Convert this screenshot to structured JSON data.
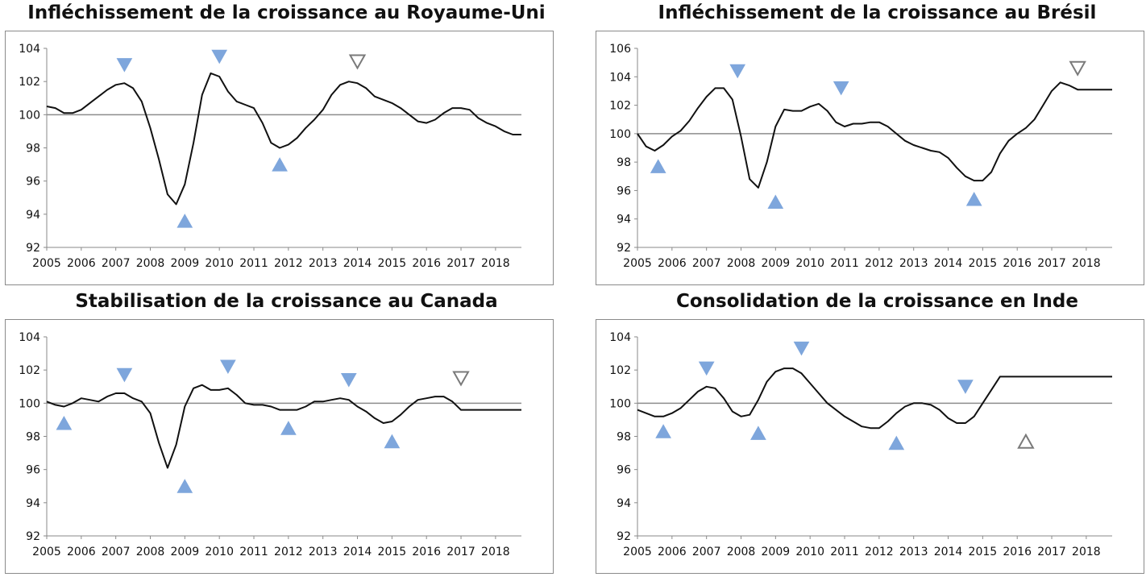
{
  "chart_data": [
    {
      "type": "line",
      "title": "Infléchissement de la croissance au Royaume-Uni",
      "ylim": [
        92,
        104
      ],
      "yticks": [
        92,
        94,
        96,
        98,
        100,
        102,
        104
      ],
      "xlim": [
        2005,
        2018.75
      ],
      "xticks": [
        "2005",
        "2006",
        "2007",
        "2008",
        "2009",
        "2010",
        "2011",
        "2012",
        "2013",
        "2014",
        "2015",
        "2016",
        "2017",
        "2018"
      ],
      "baseline": 100,
      "grid": false,
      "series": [
        {
          "x": [
            2005,
            2005.25,
            2005.5,
            2005.75,
            2006,
            2006.25,
            2006.5,
            2006.75,
            2007,
            2007.25,
            2007.5,
            2007.75,
            2008,
            2008.25,
            2008.5,
            2008.75,
            2009,
            2009.25,
            2009.5,
            2009.75,
            2010,
            2010.25,
            2010.5,
            2010.75,
            2011,
            2011.25,
            2011.5,
            2011.75,
            2012,
            2012.25,
            2012.5,
            2012.75,
            2013,
            2013.25,
            2013.5,
            2013.75,
            2014,
            2014.25,
            2014.5,
            2014.75,
            2015,
            2015.25,
            2015.5,
            2015.75,
            2016,
            2016.25,
            2016.5,
            2016.75,
            2017,
            2017.25,
            2017.5,
            2017.75,
            2018,
            2018.25,
            2018.5,
            2018.75
          ],
          "values": [
            100.5,
            100.4,
            100.1,
            100.1,
            100.3,
            100.7,
            101.1,
            101.5,
            101.8,
            101.9,
            101.6,
            100.8,
            99.2,
            97.3,
            95.2,
            94.6,
            95.8,
            98.3,
            101.2,
            102.5,
            102.3,
            101.4,
            100.8,
            100.6,
            100.4,
            99.5,
            98.3,
            98.0,
            98.2,
            98.6,
            99.2,
            99.7,
            100.3,
            101.2,
            101.8,
            102.0,
            101.9,
            101.6,
            101.1,
            100.9,
            100.7,
            100.4,
            100.0,
            99.6,
            99.5,
            99.7,
            100.1,
            100.4,
            100.4,
            100.3,
            99.8,
            99.5,
            99.3,
            99.0,
            98.8,
            98.8
          ]
        }
      ],
      "markers": [
        {
          "x": 2007.25,
          "y": 103.0,
          "dir": "down",
          "style": "filled"
        },
        {
          "x": 2009.0,
          "y": 93.6,
          "dir": "up",
          "style": "filled"
        },
        {
          "x": 2010.0,
          "y": 103.5,
          "dir": "down",
          "style": "filled"
        },
        {
          "x": 2011.75,
          "y": 97.0,
          "dir": "up",
          "style": "filled"
        },
        {
          "x": 2014.0,
          "y": 103.2,
          "dir": "down",
          "style": "outline"
        }
      ]
    },
    {
      "type": "line",
      "title": "Infléchissement de la croissance au Brésil",
      "ylim": [
        92,
        106
      ],
      "yticks": [
        92,
        94,
        96,
        98,
        100,
        102,
        104,
        106
      ],
      "xlim": [
        2005,
        2018.75
      ],
      "xticks": [
        "2005",
        "2006",
        "2007",
        "2008",
        "2009",
        "2010",
        "2011",
        "2012",
        "2013",
        "2014",
        "2015",
        "2016",
        "2017",
        "2018"
      ],
      "baseline": 100,
      "grid": false,
      "series": [
        {
          "x": [
            2005,
            2005.25,
            2005.5,
            2005.75,
            2006,
            2006.25,
            2006.5,
            2006.75,
            2007,
            2007.25,
            2007.5,
            2007.75,
            2008,
            2008.25,
            2008.5,
            2008.75,
            2009,
            2009.25,
            2009.5,
            2009.75,
            2010,
            2010.25,
            2010.5,
            2010.75,
            2011,
            2011.25,
            2011.5,
            2011.75,
            2012,
            2012.25,
            2012.5,
            2012.75,
            2013,
            2013.25,
            2013.5,
            2013.75,
            2014,
            2014.25,
            2014.5,
            2014.75,
            2015,
            2015.25,
            2015.5,
            2015.75,
            2016,
            2016.25,
            2016.5,
            2016.75,
            2017,
            2017.25,
            2017.5,
            2017.75,
            2018,
            2018.25,
            2018.5,
            2018.75
          ],
          "values": [
            100.0,
            99.1,
            98.8,
            99.2,
            99.8,
            100.2,
            100.9,
            101.8,
            102.6,
            103.2,
            103.2,
            102.4,
            99.8,
            96.8,
            96.2,
            98.0,
            100.5,
            101.7,
            101.6,
            101.6,
            101.9,
            102.1,
            101.6,
            100.8,
            100.5,
            100.7,
            100.7,
            100.8,
            100.8,
            100.5,
            100.0,
            99.5,
            99.2,
            99.0,
            98.8,
            98.7,
            98.3,
            97.6,
            97.0,
            96.7,
            96.7,
            97.3,
            98.6,
            99.5,
            100.0,
            100.4,
            101.0,
            102.0,
            103.0,
            103.6,
            103.4,
            103.1,
            103.1,
            103.1,
            103.1,
            103.1
          ]
        }
      ],
      "markers": [
        {
          "x": 2005.6,
          "y": 97.7,
          "dir": "up",
          "style": "filled"
        },
        {
          "x": 2007.9,
          "y": 104.4,
          "dir": "down",
          "style": "filled"
        },
        {
          "x": 2009.0,
          "y": 95.2,
          "dir": "up",
          "style": "filled"
        },
        {
          "x": 2010.9,
          "y": 103.2,
          "dir": "down",
          "style": "filled"
        },
        {
          "x": 2014.75,
          "y": 95.4,
          "dir": "up",
          "style": "filled"
        },
        {
          "x": 2017.75,
          "y": 104.6,
          "dir": "down",
          "style": "outline"
        }
      ]
    },
    {
      "type": "line",
      "title": "Stabilisation de la croissance au Canada",
      "ylim": [
        92,
        104
      ],
      "yticks": [
        92,
        94,
        96,
        98,
        100,
        102,
        104
      ],
      "xlim": [
        2005,
        2018.75
      ],
      "xticks": [
        "2005",
        "2006",
        "2007",
        "2008",
        "2009",
        "2010",
        "2011",
        "2012",
        "2013",
        "2014",
        "2015",
        "2016",
        "2017",
        "2018"
      ],
      "baseline": 100,
      "grid": false,
      "series": [
        {
          "x": [
            2005,
            2005.25,
            2005.5,
            2005.75,
            2006,
            2006.25,
            2006.5,
            2006.75,
            2007,
            2007.25,
            2007.5,
            2007.75,
            2008,
            2008.25,
            2008.5,
            2008.75,
            2009,
            2009.25,
            2009.5,
            2009.75,
            2010,
            2010.25,
            2010.5,
            2010.75,
            2011,
            2011.25,
            2011.5,
            2011.75,
            2012,
            2012.25,
            2012.5,
            2012.75,
            2013,
            2013.25,
            2013.5,
            2013.75,
            2014,
            2014.25,
            2014.5,
            2014.75,
            2015,
            2015.25,
            2015.5,
            2015.75,
            2016,
            2016.25,
            2016.5,
            2016.75,
            2017,
            2017.25,
            2017.5,
            2017.75,
            2018,
            2018.25,
            2018.5,
            2018.75
          ],
          "values": [
            100.1,
            99.9,
            99.8,
            100.0,
            100.3,
            100.2,
            100.1,
            100.4,
            100.6,
            100.6,
            100.3,
            100.1,
            99.4,
            97.6,
            96.1,
            97.5,
            99.8,
            100.9,
            101.1,
            100.8,
            100.8,
            100.9,
            100.5,
            100.0,
            99.9,
            99.9,
            99.8,
            99.6,
            99.6,
            99.6,
            99.8,
            100.1,
            100.1,
            100.2,
            100.3,
            100.2,
            99.8,
            99.5,
            99.1,
            98.8,
            98.9,
            99.3,
            99.8,
            100.2,
            100.3,
            100.4,
            100.4,
            100.1,
            99.6,
            99.6,
            99.6,
            99.6,
            99.6,
            99.6,
            99.6,
            99.6
          ]
        }
      ],
      "markers": [
        {
          "x": 2005.5,
          "y": 98.8,
          "dir": "up",
          "style": "filled"
        },
        {
          "x": 2007.25,
          "y": 101.7,
          "dir": "down",
          "style": "filled"
        },
        {
          "x": 2009.0,
          "y": 95.0,
          "dir": "up",
          "style": "filled"
        },
        {
          "x": 2010.25,
          "y": 102.2,
          "dir": "down",
          "style": "filled"
        },
        {
          "x": 2012.0,
          "y": 98.5,
          "dir": "up",
          "style": "filled"
        },
        {
          "x": 2013.75,
          "y": 101.4,
          "dir": "down",
          "style": "filled"
        },
        {
          "x": 2015.0,
          "y": 97.7,
          "dir": "up",
          "style": "filled"
        },
        {
          "x": 2017.0,
          "y": 101.5,
          "dir": "down",
          "style": "outline"
        }
      ]
    },
    {
      "type": "line",
      "title": "Consolidation de la croissance en Inde",
      "ylim": [
        92,
        104
      ],
      "yticks": [
        92,
        94,
        96,
        98,
        100,
        102,
        104
      ],
      "xlim": [
        2005,
        2018.75
      ],
      "xticks": [
        "2005",
        "2006",
        "2007",
        "2008",
        "2009",
        "2010",
        "2011",
        "2012",
        "2013",
        "2014",
        "2015",
        "2016",
        "2017",
        "2018"
      ],
      "baseline": 100,
      "grid": false,
      "series": [
        {
          "x": [
            2005,
            2005.25,
            2005.5,
            2005.75,
            2006,
            2006.25,
            2006.5,
            2006.75,
            2007,
            2007.25,
            2007.5,
            2007.75,
            2008,
            2008.25,
            2008.5,
            2008.75,
            2009,
            2009.25,
            2009.5,
            2009.75,
            2010,
            2010.25,
            2010.5,
            2010.75,
            2011,
            2011.25,
            2011.5,
            2011.75,
            2012,
            2012.25,
            2012.5,
            2012.75,
            2013,
            2013.25,
            2013.5,
            2013.75,
            2014,
            2014.25,
            2014.5,
            2014.75,
            2015,
            2015.25,
            2015.5,
            2015.75,
            2016,
            2016.25,
            2016.5,
            2016.75,
            2017,
            2017.25,
            2017.5,
            2017.75,
            2018,
            2018.25,
            2018.5,
            2018.75
          ],
          "values": [
            99.6,
            99.4,
            99.2,
            99.2,
            99.4,
            99.7,
            100.2,
            100.7,
            101.0,
            100.9,
            100.3,
            99.5,
            99.2,
            99.3,
            100.2,
            101.3,
            101.9,
            102.1,
            102.1,
            101.8,
            101.2,
            100.6,
            100.0,
            99.6,
            99.2,
            98.9,
            98.6,
            98.5,
            98.5,
            98.9,
            99.4,
            99.8,
            100.0,
            100.0,
            99.9,
            99.6,
            99.1,
            98.8,
            98.8,
            99.2,
            100.0,
            100.8,
            101.6,
            101.6,
            101.6,
            101.6,
            101.6,
            101.6,
            101.6,
            101.6,
            101.6,
            101.6,
            101.6,
            101.6,
            101.6,
            101.6
          ]
        }
      ],
      "markers": [
        {
          "x": 2005.75,
          "y": 98.3,
          "dir": "up",
          "style": "filled"
        },
        {
          "x": 2007.0,
          "y": 102.1,
          "dir": "down",
          "style": "filled"
        },
        {
          "x": 2008.5,
          "y": 98.2,
          "dir": "up",
          "style": "filled"
        },
        {
          "x": 2009.75,
          "y": 103.3,
          "dir": "down",
          "style": "filled"
        },
        {
          "x": 2012.5,
          "y": 97.6,
          "dir": "up",
          "style": "filled"
        },
        {
          "x": 2014.5,
          "y": 101.0,
          "dir": "down",
          "style": "filled"
        },
        {
          "x": 2016.25,
          "y": 97.7,
          "dir": "up",
          "style": "outline"
        }
      ]
    }
  ],
  "colors": {
    "line": "#111111",
    "baseline": "#8c8c8c",
    "marker_fill": "#7ea6dc",
    "marker_outline": "#7a7a7a"
  }
}
